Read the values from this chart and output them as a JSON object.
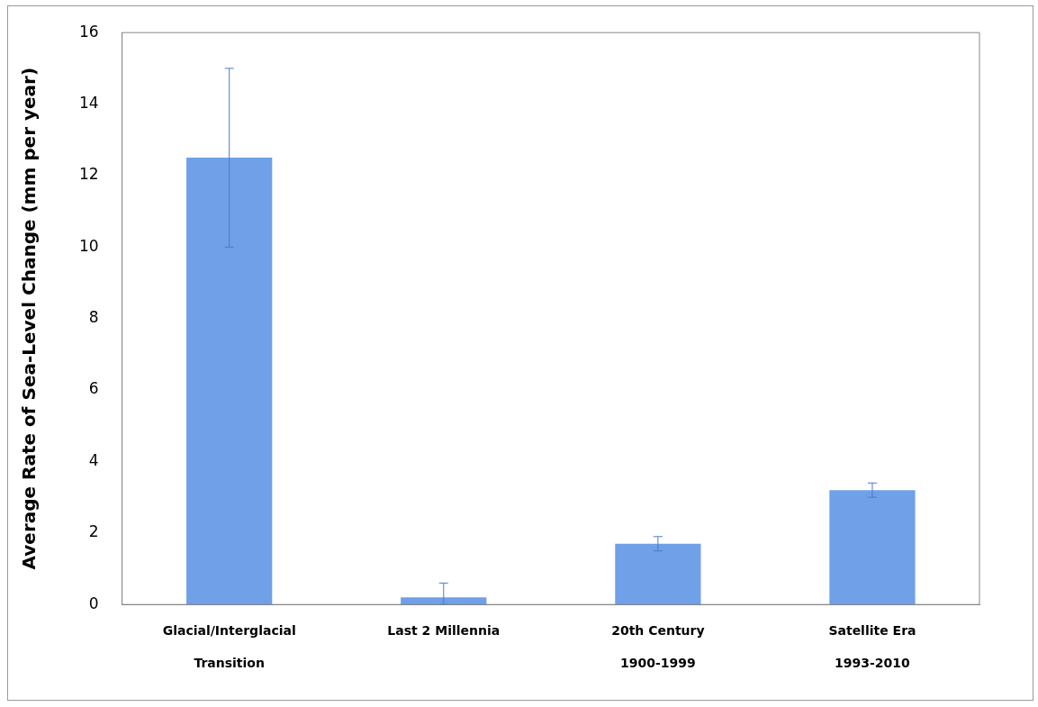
{
  "chart_data": {
    "type": "bar",
    "ylabel": "Average Rate of Sea-Level Change (mm per year)",
    "categories": [
      "Glacial/Interglacial\nTransition",
      "Last 2 Millennia",
      "20th Century\n1900-1999",
      "Satellite Era\n1993-2010"
    ],
    "values": [
      12.5,
      0.2,
      1.7,
      3.2
    ],
    "errors": [
      [
        10,
        15
      ],
      [
        0,
        0.6
      ],
      [
        1.5,
        1.9
      ],
      [
        3.0,
        3.4
      ]
    ],
    "color": "#6fa0e8",
    "ylim": [
      0,
      16
    ],
    "yticks": [
      0,
      2,
      4,
      6,
      8,
      10,
      12,
      14,
      16
    ],
    "grid": false,
    "legend": false
  }
}
